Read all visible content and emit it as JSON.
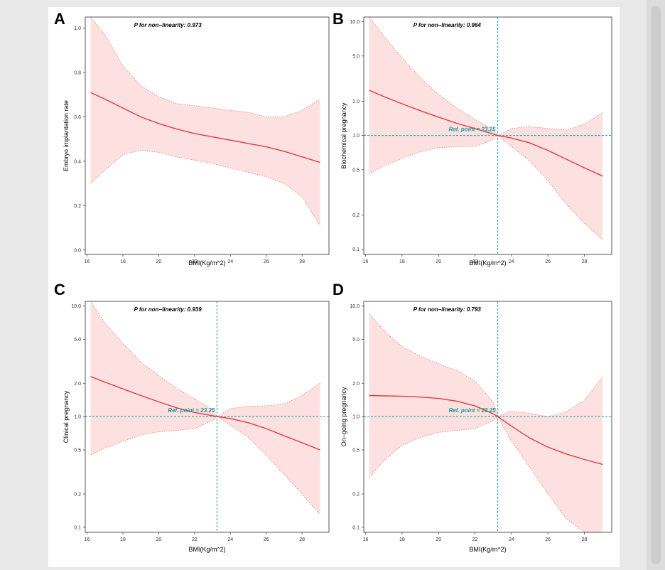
{
  "colors": {
    "band_fill": "#fde0e0",
    "band_border": "#e48888",
    "curve": "#e33b3b",
    "reference": "#19a1a1",
    "frame": "#444444"
  },
  "chart_data": [
    {
      "panel": "A",
      "type": "line",
      "annotation": "P for non−linearity: 0.973",
      "xlabel": "BMI(Kg/m^2)",
      "ylabel": "Embryo implantation rate",
      "x_scale": "linear",
      "y_scale": "linear",
      "xlim": [
        15.9,
        29.5
      ],
      "ylim": [
        -0.02,
        1.05
      ],
      "xticks": [
        16,
        18,
        20,
        22,
        24,
        26,
        28
      ],
      "yticks": [
        0.0,
        0.2,
        0.4,
        0.6,
        0.8,
        1.0
      ],
      "ytick_labels": [
        "0.0",
        "0.2",
        "0.4",
        "0.6",
        "0.8",
        "1.0"
      ],
      "reference_point": null,
      "x": [
        16.2,
        17,
        18,
        19,
        20,
        21,
        22,
        23,
        24,
        25,
        26,
        27,
        28,
        29
      ],
      "estimate": [
        0.71,
        0.68,
        0.64,
        0.6,
        0.57,
        0.545,
        0.525,
        0.51,
        0.495,
        0.48,
        0.465,
        0.445,
        0.42,
        0.395
      ],
      "lower": [
        0.3,
        0.36,
        0.43,
        0.45,
        0.44,
        0.42,
        0.405,
        0.39,
        0.37,
        0.35,
        0.33,
        0.3,
        0.24,
        0.11
      ],
      "upper": [
        1.05,
        0.97,
        0.83,
        0.74,
        0.69,
        0.66,
        0.65,
        0.64,
        0.63,
        0.62,
        0.6,
        0.6,
        0.63,
        0.68
      ]
    },
    {
      "panel": "B",
      "type": "line",
      "annotation": "P for non−linearity: 0.964",
      "xlabel": "BMI(Kg/m^2)",
      "ylabel": "Biochemical pregnancy",
      "x_scale": "linear",
      "y_scale": "log",
      "xlim": [
        15.9,
        29.5
      ],
      "ylim": [
        0.09,
        11
      ],
      "xticks": [
        16,
        18,
        20,
        22,
        24,
        26,
        28
      ],
      "yticks": [
        0.1,
        0.2,
        0.5,
        1.0,
        2.0,
        5.0,
        10.0
      ],
      "ytick_labels": [
        "0.1",
        "0.2",
        "0.5",
        "1.0",
        "2.0",
        "5.0",
        "10.0"
      ],
      "reference_point": {
        "x": 23.25,
        "y": 1.0,
        "label": "Ref. point = 23.25"
      },
      "x": [
        16.2,
        17,
        18,
        19,
        20,
        21,
        22,
        23,
        23.25,
        24,
        25,
        26,
        27,
        28,
        29
      ],
      "estimate": [
        2.5,
        2.2,
        1.9,
        1.65,
        1.45,
        1.28,
        1.15,
        1.03,
        1.0,
        0.95,
        0.86,
        0.74,
        0.62,
        0.52,
        0.44
      ],
      "lower": [
        0.46,
        0.54,
        0.63,
        0.72,
        0.78,
        0.8,
        0.8,
        0.92,
        1.0,
        0.8,
        0.6,
        0.4,
        0.25,
        0.17,
        0.12
      ],
      "upper": [
        11.0,
        7.5,
        4.8,
        3.2,
        2.3,
        1.75,
        1.38,
        1.12,
        1.0,
        1.15,
        1.2,
        1.15,
        1.12,
        1.25,
        1.6
      ]
    },
    {
      "panel": "C",
      "type": "line",
      "annotation": "P for non−linearity: 0.939",
      "xlabel": "BMI(Kg/m^2)",
      "ylabel": "Clinical pregnancy",
      "x_scale": "linear",
      "y_scale": "log",
      "xlim": [
        15.9,
        29.5
      ],
      "ylim": [
        0.09,
        11
      ],
      "xticks": [
        16,
        18,
        20,
        22,
        24,
        26,
        28
      ],
      "yticks": [
        0.1,
        0.2,
        0.5,
        1.0,
        2.0,
        5.0,
        10.0
      ],
      "ytick_labels": [
        "0.1",
        "0.2",
        "0.5",
        "1.0",
        "2.0",
        "5.0",
        "10.0"
      ],
      "reference_point": {
        "x": 23.25,
        "y": 1.0,
        "label": "Ref. point = 23.25"
      },
      "x": [
        16.2,
        17,
        18,
        19,
        20,
        21,
        22,
        23,
        23.25,
        24,
        25,
        26,
        27,
        28,
        29
      ],
      "estimate": [
        2.3,
        2.05,
        1.78,
        1.55,
        1.36,
        1.2,
        1.09,
        1.02,
        1.0,
        0.96,
        0.88,
        0.78,
        0.67,
        0.58,
        0.5
      ],
      "lower": [
        0.45,
        0.52,
        0.6,
        0.68,
        0.73,
        0.75,
        0.78,
        0.92,
        1.0,
        0.84,
        0.65,
        0.45,
        0.3,
        0.2,
        0.13
      ],
      "upper": [
        11.0,
        7.0,
        4.6,
        3.1,
        2.35,
        1.8,
        1.45,
        1.15,
        1.0,
        1.18,
        1.24,
        1.25,
        1.3,
        1.55,
        2.0
      ]
    },
    {
      "panel": "D",
      "type": "line",
      "annotation": "P for non−linearity: 0.793",
      "xlabel": "BMI(Kg/m^2)",
      "ylabel": "On−going pregnancy",
      "x_scale": "linear",
      "y_scale": "log",
      "xlim": [
        15.9,
        29.5
      ],
      "ylim": [
        0.09,
        11
      ],
      "xticks": [
        16,
        18,
        20,
        22,
        24,
        26,
        28
      ],
      "yticks": [
        0.1,
        0.2,
        0.5,
        1.0,
        2.0,
        5.0,
        10.0
      ],
      "ytick_labels": [
        "0.1",
        "0.2",
        "0.5",
        "1.0",
        "2.0",
        "5.0",
        "10.0"
      ],
      "reference_point": {
        "x": 23.25,
        "y": 1.0,
        "label": "Ref. point = 23.25"
      },
      "x": [
        16.2,
        17,
        18,
        19,
        20,
        21,
        22,
        23,
        23.25,
        24,
        25,
        26,
        27,
        28,
        29
      ],
      "estimate": [
        1.55,
        1.54,
        1.53,
        1.5,
        1.46,
        1.38,
        1.25,
        1.06,
        1.0,
        0.82,
        0.64,
        0.53,
        0.46,
        0.41,
        0.37
      ],
      "lower": [
        0.28,
        0.4,
        0.55,
        0.65,
        0.72,
        0.75,
        0.78,
        0.92,
        1.0,
        0.6,
        0.35,
        0.2,
        0.12,
        0.09,
        0.09
      ],
      "upper": [
        8.5,
        6.0,
        4.3,
        3.5,
        3.0,
        2.6,
        2.1,
        1.35,
        1.0,
        1.12,
        1.07,
        1.0,
        1.1,
        1.4,
        2.3
      ]
    }
  ]
}
